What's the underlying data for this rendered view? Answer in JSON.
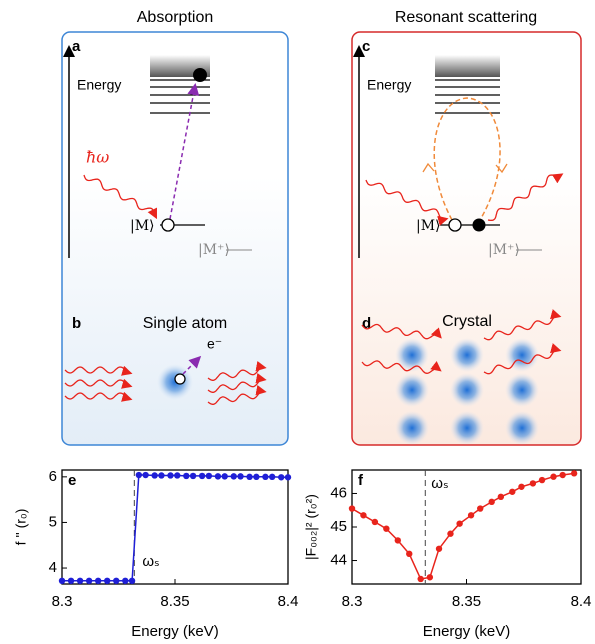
{
  "panels": [
    {
      "title": "Absorption",
      "label_top": "a",
      "energy": "Energy",
      "photon": "ħω",
      "ground": "|M⟩",
      "ion": "|M⁺⟩",
      "label_bottom": "b",
      "bottom_title": "Single atom",
      "electron": "e⁻"
    },
    {
      "title": "Resonant scattering",
      "label_top": "c",
      "energy": "Energy",
      "ground": "|M⟩",
      "ion": "|M⁺⟩",
      "label_bottom": "d",
      "bottom_title": "Crystal"
    }
  ],
  "chart_data": [
    {
      "type": "line",
      "panel_label": "e",
      "xlabel": "Energy (keV)",
      "ylabel": "f '' (r₀)",
      "color": "#1f1fd6",
      "x": [
        8.3,
        8.304,
        8.308,
        8.312,
        8.316,
        8.32,
        8.324,
        8.328,
        8.331,
        8.334,
        8.337,
        8.341,
        8.344,
        8.348,
        8.351,
        8.355,
        8.358,
        8.362,
        8.365,
        8.369,
        8.372,
        8.376,
        8.379,
        8.383,
        8.386,
        8.39,
        8.393,
        8.397,
        8.4
      ],
      "values": [
        3.72,
        3.72,
        3.72,
        3.72,
        3.72,
        3.72,
        3.72,
        3.72,
        3.72,
        6.04,
        6.04,
        6.03,
        6.03,
        6.03,
        6.03,
        6.02,
        6.02,
        6.02,
        6.02,
        6.01,
        6.01,
        6.01,
        6.01,
        6.0,
        6.0,
        6.0,
        6.0,
        5.99,
        5.99
      ],
      "xlim": [
        8.3,
        8.4
      ],
      "xticks": [
        8.3,
        8.35,
        8.4
      ],
      "ylim": [
        3.65,
        6.15
      ],
      "yticks": [
        4,
        5,
        6
      ],
      "annotation": "ωₛ",
      "annotation_x": 8.332
    },
    {
      "type": "line",
      "panel_label": "f",
      "xlabel": "Energy (keV)",
      "ylabel": "|F₀₀₂|² (r₀²)",
      "color": "#e8241c",
      "x": [
        8.3,
        8.305,
        8.31,
        8.315,
        8.32,
        8.325,
        8.33,
        8.334,
        8.338,
        8.343,
        8.347,
        8.352,
        8.356,
        8.361,
        8.365,
        8.37,
        8.374,
        8.379,
        8.383,
        8.388,
        8.392,
        8.397
      ],
      "values": [
        45.55,
        45.35,
        45.15,
        44.95,
        44.6,
        44.2,
        43.45,
        43.5,
        44.35,
        44.8,
        45.1,
        45.35,
        45.55,
        45.75,
        45.9,
        46.05,
        46.2,
        46.3,
        46.4,
        46.5,
        46.55,
        46.6
      ],
      "xlim": [
        8.3,
        8.4
      ],
      "xticks": [
        8.3,
        8.35,
        8.4
      ],
      "ylim": [
        43.3,
        46.7
      ],
      "yticks": [
        44,
        45,
        46
      ],
      "annotation": "ωₛ",
      "annotation_x": 8.332
    }
  ]
}
